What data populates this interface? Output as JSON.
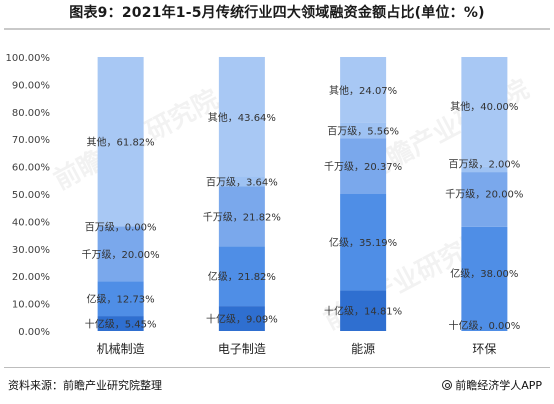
{
  "header": {
    "title": "图表9：2021年1-5月传统行业四大领域融资金额占比(单位：%)"
  },
  "footer": {
    "source": "资料来源：前瞻产业研究院整理",
    "brand": "前瞻经济学人APP"
  },
  "watermark": {
    "text": "前瞻产业研究院"
  },
  "colors": {
    "series": [
      "#2f6fd0",
      "#4f8ee6",
      "#7aa8ec",
      "#9ec2f3",
      "#a8c8f4"
    ],
    "axis_text": "#404040",
    "label_text": "#333333",
    "grid": "#e3e3e3"
  },
  "chart_data": {
    "type": "bar",
    "stacked": true,
    "title": "",
    "xlabel": "",
    "ylabel": "",
    "ylim": [
      0,
      100
    ],
    "yticks": [
      0,
      10,
      20,
      30,
      40,
      50,
      60,
      70,
      80,
      90,
      100
    ],
    "ytick_labels": [
      "0.00%",
      "10.00%",
      "20.00%",
      "30.00%",
      "40.00%",
      "50.00%",
      "60.00%",
      "70.00%",
      "80.00%",
      "90.00%",
      "100.00%"
    ],
    "grid": false,
    "legend": "none",
    "categories": [
      "机械制造",
      "电子制造",
      "能源",
      "环保"
    ],
    "series": [
      {
        "name": "十亿级",
        "values": [
          5.45,
          9.09,
          14.81,
          0.0
        ],
        "labels": [
          "十亿级，5.45%",
          "十亿级，9.09%",
          "十亿级，14.81%",
          "十亿级，0.00%"
        ]
      },
      {
        "name": "亿级",
        "values": [
          12.73,
          21.82,
          35.19,
          38.0
        ],
        "labels": [
          "亿级，12.73%",
          "亿级，21.82%",
          "亿级，35.19%",
          "亿级，38.00%"
        ]
      },
      {
        "name": "千万级",
        "values": [
          20.0,
          21.82,
          20.37,
          20.0
        ],
        "labels": [
          "千万级，20.00%",
          "千万级，21.82%",
          "千万级，20.37%",
          "千万级，20.00%"
        ]
      },
      {
        "name": "百万级",
        "values": [
          0.0,
          3.64,
          5.56,
          2.0
        ],
        "labels": [
          "百万级，0.00%",
          "百万级，3.64%",
          "百万级，5.56%",
          "百万级，2.00%"
        ]
      },
      {
        "name": "其他",
        "values": [
          61.82,
          43.64,
          24.07,
          40.0
        ],
        "labels": [
          "其他，61.82%",
          "其他，43.64%",
          "其他，24.07%",
          "其他，40.00%"
        ]
      }
    ]
  }
}
